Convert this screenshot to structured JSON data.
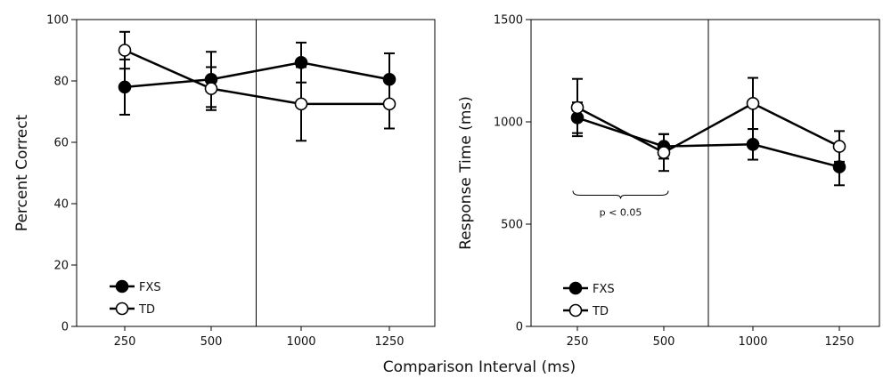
{
  "figure": {
    "shared_xlabel": "Comparison Interval (ms)"
  },
  "chart_data": [
    {
      "type": "line",
      "categories": [
        "250",
        "500",
        "1000",
        "1250"
      ],
      "ylabel": "Percent Correct",
      "ylim": [
        0,
        100
      ],
      "yticks": [
        "0",
        "20",
        "40",
        "60",
        "80",
        "100"
      ],
      "divider_after_category": 1,
      "legend": {
        "position": "bottom-left"
      },
      "series": [
        {
          "name": "FXS",
          "marker": "filled-circle",
          "color": "#000000",
          "values": [
            78,
            80.5,
            86,
            80.5
          ],
          "error": [
            9,
            9,
            6.5,
            8.5
          ]
        },
        {
          "name": "TD",
          "marker": "open-circle",
          "color": "#000000",
          "values": [
            90,
            77.5,
            72.5,
            72.5
          ],
          "error": [
            6,
            7,
            12,
            8
          ]
        }
      ]
    },
    {
      "type": "line",
      "categories": [
        "250",
        "500",
        "1000",
        "1250"
      ],
      "ylabel": "Response Time (ms)",
      "ylim": [
        0,
        1500
      ],
      "yticks": [
        "0",
        "500",
        "1000",
        "1500"
      ],
      "divider_after_category": 1,
      "legend": {
        "position": "bottom-left"
      },
      "annotation": {
        "text": "p < 0.05",
        "from_category": 0,
        "to_category": 1,
        "y": 650
      },
      "series": [
        {
          "name": "FXS",
          "marker": "filled-circle",
          "color": "#000000",
          "values": [
            1020,
            880,
            890,
            780
          ],
          "error": [
            75,
            60,
            75,
            90
          ]
        },
        {
          "name": "TD",
          "marker": "open-circle",
          "color": "#000000",
          "values": [
            1070,
            850,
            1090,
            880
          ],
          "error": [
            140,
            90,
            125,
            75
          ]
        }
      ]
    }
  ]
}
